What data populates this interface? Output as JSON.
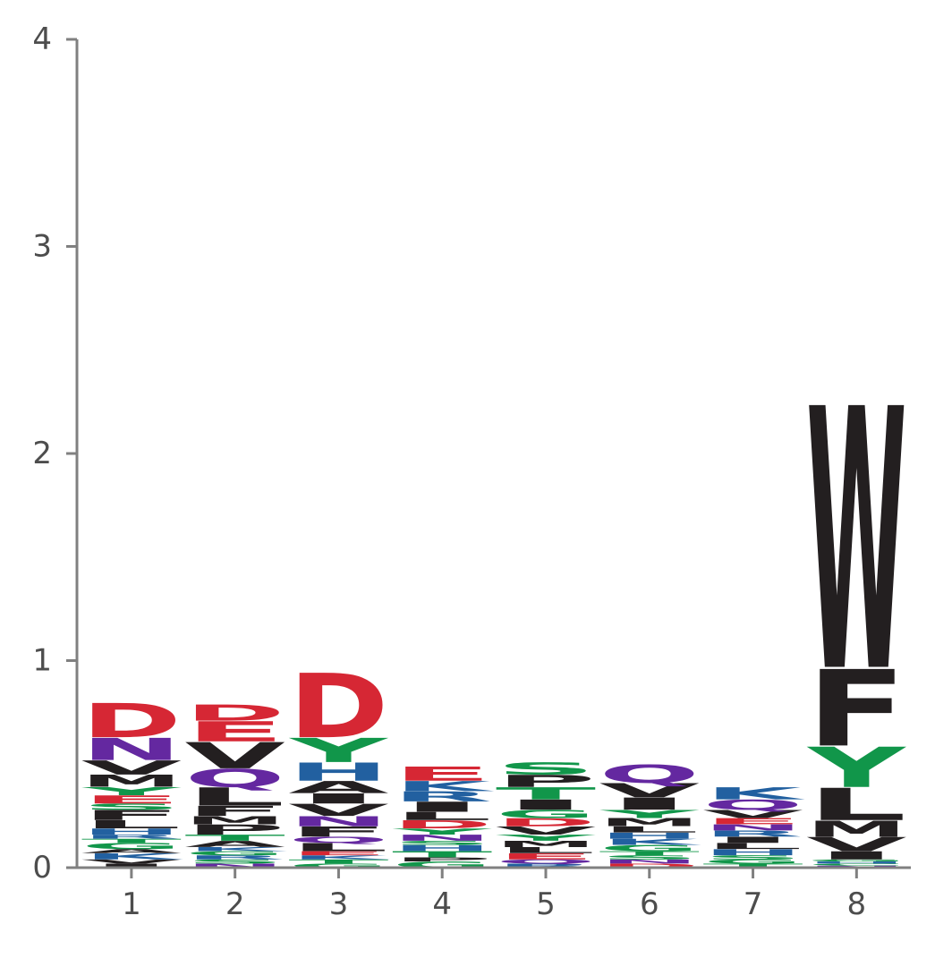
{
  "chart_data": {
    "type": "sequence-logo",
    "title": "",
    "xlabel": "",
    "ylabel": "",
    "ylim": [
      0,
      4
    ],
    "yticks": [
      0,
      1,
      2,
      3,
      4
    ],
    "y_tick_labels": [
      "0",
      "1",
      "2",
      "3",
      "4"
    ],
    "positions": [
      1,
      2,
      3,
      4,
      5,
      6,
      7,
      8
    ],
    "x_tick_labels": [
      "1",
      "2",
      "3",
      "4",
      "5",
      "6",
      "7",
      "8"
    ],
    "grid": false,
    "colors": {
      "acidic": "#d62734",
      "polar_green": "#11964a",
      "basic_blue": "#2260a0",
      "amide_purple": "#6428a0",
      "hydrophobic_black": "#231f20",
      "axis": "#808080"
    },
    "color_scheme": {
      "D": "acidic",
      "E": "acidic",
      "S": "polar_green",
      "T": "polar_green",
      "Y": "polar_green",
      "G": "polar_green",
      "C": "polar_green",
      "K": "basic_blue",
      "R": "basic_blue",
      "H": "basic_blue",
      "N": "amide_purple",
      "Q": "amide_purple",
      "A": "hydrophobic_black",
      "V": "hydrophobic_black",
      "L": "hydrophobic_black",
      "I": "hydrophobic_black",
      "P": "hydrophobic_black",
      "W": "hydrophobic_black",
      "F": "hydrophobic_black",
      "M": "hydrophobic_black"
    },
    "stacks": [
      {
        "position": 1,
        "letters": [
          {
            "letter": "I",
            "height": 0.02
          },
          {
            "letter": "V",
            "height": 0.02
          },
          {
            "letter": "K",
            "height": 0.03
          },
          {
            "letter": "A",
            "height": 0.02
          },
          {
            "letter": "G",
            "height": 0.03
          },
          {
            "letter": "T",
            "height": 0.02
          },
          {
            "letter": "R",
            "height": 0.02
          },
          {
            "letter": "H",
            "height": 0.03
          },
          {
            "letter": "L",
            "height": 0.04
          },
          {
            "letter": "F",
            "height": 0.05
          },
          {
            "letter": "S",
            "height": 0.03
          },
          {
            "letter": "E",
            "height": 0.04
          },
          {
            "letter": "Y",
            "height": 0.04
          },
          {
            "letter": "M",
            "height": 0.06
          },
          {
            "letter": "V",
            "height": 0.07
          },
          {
            "letter": "N",
            "height": 0.11
          },
          {
            "letter": "D",
            "height": 0.17
          }
        ]
      },
      {
        "position": 2,
        "letters": [
          {
            "letter": "N",
            "height": 0.02
          },
          {
            "letter": "S",
            "height": 0.02
          },
          {
            "letter": "R",
            "height": 0.02
          },
          {
            "letter": "G",
            "height": 0.02
          },
          {
            "letter": "K",
            "height": 0.02
          },
          {
            "letter": "A",
            "height": 0.03
          },
          {
            "letter": "T",
            "height": 0.03
          },
          {
            "letter": "P",
            "height": 0.05
          },
          {
            "letter": "M",
            "height": 0.04
          },
          {
            "letter": "F",
            "height": 0.05
          },
          {
            "letter": "L",
            "height": 0.09
          },
          {
            "letter": "Q",
            "height": 0.09
          },
          {
            "letter": "V",
            "height": 0.13
          },
          {
            "letter": "E",
            "height": 0.1
          },
          {
            "letter": "D",
            "height": 0.08
          }
        ]
      },
      {
        "position": 3,
        "letters": [
          {
            "letter": "G",
            "height": 0.02
          },
          {
            "letter": "T",
            "height": 0.02
          },
          {
            "letter": "K",
            "height": 0.02
          },
          {
            "letter": "E",
            "height": 0.02
          },
          {
            "letter": "L",
            "height": 0.04
          },
          {
            "letter": "Q",
            "height": 0.03
          },
          {
            "letter": "F",
            "height": 0.05
          },
          {
            "letter": "N",
            "height": 0.05
          },
          {
            "letter": "V",
            "height": 0.06
          },
          {
            "letter": "I",
            "height": 0.05
          },
          {
            "letter": "A",
            "height": 0.06
          },
          {
            "letter": "H",
            "height": 0.09
          },
          {
            "letter": "Y",
            "height": 0.12
          },
          {
            "letter": "D",
            "height": 0.32
          }
        ]
      },
      {
        "position": 4,
        "letters": [
          {
            "letter": "G",
            "height": 0.03
          },
          {
            "letter": "P",
            "height": 0.02
          },
          {
            "letter": "T",
            "height": 0.03
          },
          {
            "letter": "H",
            "height": 0.03
          },
          {
            "letter": "S",
            "height": 0.02
          },
          {
            "letter": "N",
            "height": 0.03
          },
          {
            "letter": "Y",
            "height": 0.03
          },
          {
            "letter": "D",
            "height": 0.04
          },
          {
            "letter": "L",
            "height": 0.04
          },
          {
            "letter": "I",
            "height": 0.05
          },
          {
            "letter": "R",
            "height": 0.05
          },
          {
            "letter": "K",
            "height": 0.05
          },
          {
            "letter": "E",
            "height": 0.07
          }
        ]
      },
      {
        "position": 5,
        "letters": [
          {
            "letter": "R",
            "height": 0.02
          },
          {
            "letter": "Q",
            "height": 0.02
          },
          {
            "letter": "E",
            "height": 0.03
          },
          {
            "letter": "L",
            "height": 0.03
          },
          {
            "letter": "M",
            "height": 0.03
          },
          {
            "letter": "Y",
            "height": 0.03
          },
          {
            "letter": "V",
            "height": 0.04
          },
          {
            "letter": "D",
            "height": 0.04
          },
          {
            "letter": "G",
            "height": 0.04
          },
          {
            "letter": "I",
            "height": 0.05
          },
          {
            "letter": "T",
            "height": 0.06
          },
          {
            "letter": "P",
            "height": 0.06
          },
          {
            "letter": "S",
            "height": 0.06
          }
        ]
      },
      {
        "position": 6,
        "letters": [
          {
            "letter": "D",
            "height": 0.02
          },
          {
            "letter": "N",
            "height": 0.02
          },
          {
            "letter": "S",
            "height": 0.02
          },
          {
            "letter": "T",
            "height": 0.02
          },
          {
            "letter": "G",
            "height": 0.03
          },
          {
            "letter": "K",
            "height": 0.03
          },
          {
            "letter": "H",
            "height": 0.03
          },
          {
            "letter": "L",
            "height": 0.03
          },
          {
            "letter": "M",
            "height": 0.04
          },
          {
            "letter": "Y",
            "height": 0.04
          },
          {
            "letter": "I",
            "height": 0.06
          },
          {
            "letter": "V",
            "height": 0.07
          },
          {
            "letter": "Q",
            "height": 0.09
          }
        ]
      },
      {
        "position": 7,
        "letters": [
          {
            "letter": "T",
            "height": 0.02
          },
          {
            "letter": "G",
            "height": 0.02
          },
          {
            "letter": "S",
            "height": 0.02
          },
          {
            "letter": "H",
            "height": 0.03
          },
          {
            "letter": "L",
            "height": 0.03
          },
          {
            "letter": "I",
            "height": 0.03
          },
          {
            "letter": "R",
            "height": 0.03
          },
          {
            "letter": "N",
            "height": 0.03
          },
          {
            "letter": "E",
            "height": 0.03
          },
          {
            "letter": "V",
            "height": 0.04
          },
          {
            "letter": "Q",
            "height": 0.05
          },
          {
            "letter": "K",
            "height": 0.06
          }
        ]
      },
      {
        "position": 8,
        "letters": [
          {
            "letter": "N",
            "height": 0.01
          },
          {
            "letter": "C",
            "height": 0.01
          },
          {
            "letter": "H",
            "height": 0.01
          },
          {
            "letter": "G",
            "height": 0.01
          },
          {
            "letter": "I",
            "height": 0.04
          },
          {
            "letter": "V",
            "height": 0.07
          },
          {
            "letter": "M",
            "height": 0.08
          },
          {
            "letter": "L",
            "height": 0.16
          },
          {
            "letter": "Y",
            "height": 0.2
          },
          {
            "letter": "F",
            "height": 0.38
          },
          {
            "letter": "W",
            "height": 1.3
          }
        ]
      }
    ]
  }
}
